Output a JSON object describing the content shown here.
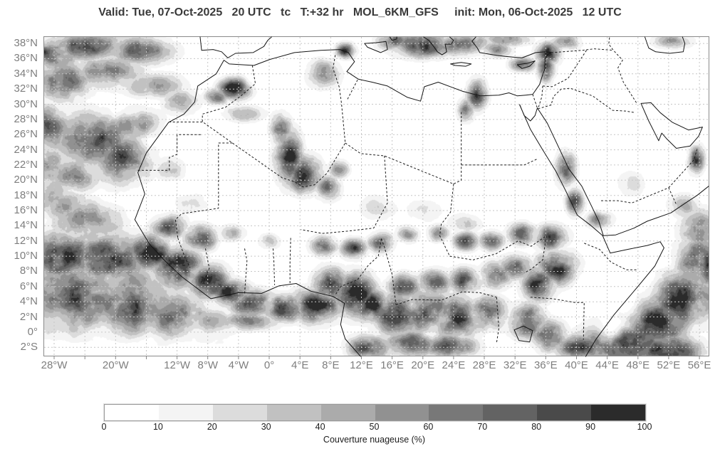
{
  "header": {
    "title": "Valid: Tue, 07-Oct-2025   20 UTC   tc   T:+32 hr   MOL_6KM_GFS     init: Mon, 06-Oct-2025   12 UTC"
  },
  "map": {
    "lat_ticks": [
      {
        "label": "38°N",
        "lat": 38
      },
      {
        "label": "36°N",
        "lat": 36
      },
      {
        "label": "34°N",
        "lat": 34
      },
      {
        "label": "32°N",
        "lat": 32
      },
      {
        "label": "30°N",
        "lat": 30
      },
      {
        "label": "28°N",
        "lat": 28
      },
      {
        "label": "26°N",
        "lat": 26
      },
      {
        "label": "24°N",
        "lat": 24
      },
      {
        "label": "22°N",
        "lat": 22
      },
      {
        "label": "20°N",
        "lat": 20
      },
      {
        "label": "18°N",
        "lat": 18
      },
      {
        "label": "16°N",
        "lat": 16
      },
      {
        "label": "14°N",
        "lat": 14
      },
      {
        "label": "12°N",
        "lat": 12
      },
      {
        "label": "10°N",
        "lat": 10
      },
      {
        "label": "8°N",
        "lat": 8
      },
      {
        "label": "6°N",
        "lat": 6
      },
      {
        "label": "4°N",
        "lat": 4
      },
      {
        "label": "2°N",
        "lat": 2
      },
      {
        "label": "0°",
        "lat": 0
      },
      {
        "label": "2°S",
        "lat": -2
      }
    ],
    "lon_ticks": [
      {
        "label": "28°W",
        "lon": -28
      },
      {
        "label": "20°W",
        "lon": -20
      },
      {
        "label": "12°W",
        "lon": -12
      },
      {
        "label": "8°W",
        "lon": -8
      },
      {
        "label": "4°W",
        "lon": -4
      },
      {
        "label": "0°",
        "lon": 0
      },
      {
        "label": "4°E",
        "lon": 4
      },
      {
        "label": "8°E",
        "lon": 8
      },
      {
        "label": "12°E",
        "lon": 12
      },
      {
        "label": "16°E",
        "lon": 16
      },
      {
        "label": "20°E",
        "lon": 20
      },
      {
        "label": "24°E",
        "lon": 24
      },
      {
        "label": "28°E",
        "lon": 28
      },
      {
        "label": "32°E",
        "lon": 32
      },
      {
        "label": "36°E",
        "lon": 36
      },
      {
        "label": "40°E",
        "lon": 40
      },
      {
        "label": "44°E",
        "lon": 44
      },
      {
        "label": "48°E",
        "lon": 48
      },
      {
        "label": "52°E",
        "lon": 52
      },
      {
        "label": "56°E",
        "lon": 56
      }
    ],
    "grid": {
      "lon_step_deg": 4,
      "lat_step_deg": 2
    }
  },
  "colorbar": {
    "label": "Couverture nuageuse (%)",
    "tick_labels": [
      "0",
      "10",
      "20",
      "30",
      "40",
      "50",
      "60",
      "70",
      "80",
      "90",
      "100"
    ],
    "colors": [
      "#ffffff",
      "#f4f4f4",
      "#dcdcdc",
      "#c1c1c1",
      "#ababab",
      "#919191",
      "#787878",
      "#636363",
      "#4a4a4a",
      "#2b2b2b"
    ]
  },
  "chart_data": {
    "type": "heatmap",
    "title": "Valid: Tue, 07-Oct-2025 20 UTC tc T:+32 hr MOL_6KM_GFS init: Mon, 06-Oct-2025 12 UTC",
    "variable": "Couverture nuageuse (%)",
    "units": "%",
    "model": "MOL_6KM_GFS",
    "valid_time": "Tue, 07-Oct-2025 20 UTC",
    "init_time": "Mon, 06-Oct-2025 12 UTC",
    "lead_hours": "+32",
    "extent": {
      "lon_min": -29.3,
      "lon_max": 57.2,
      "lat_min": -3.1,
      "lat_max": 38.85
    },
    "levels": [
      0,
      10,
      20,
      30,
      40,
      50,
      60,
      70,
      80,
      90,
      100
    ],
    "cloud_regions": [
      [
        -24,
        37.6,
        5,
        1.6,
        0.7
      ],
      [
        -17,
        37.2,
        4,
        1.8,
        0.6
      ],
      [
        -28.5,
        36.5,
        3,
        2.2,
        0.7
      ],
      [
        -27,
        33,
        3.5,
        2.5,
        0.68
      ],
      [
        -21,
        34.2,
        4,
        2,
        0.58
      ],
      [
        -15,
        32.5,
        3.5,
        1.5,
        0.5
      ],
      [
        -11.5,
        30.3,
        2.2,
        1.5,
        0.45
      ],
      [
        -23,
        25.5,
        4.5,
        3.5,
        0.7
      ],
      [
        -19,
        22.8,
        3.5,
        3,
        0.7
      ],
      [
        -25.5,
        20.8,
        3,
        2,
        0.6
      ],
      [
        -17.5,
        27.5,
        3,
        2,
        0.6
      ],
      [
        -28.8,
        27,
        2.5,
        3,
        0.65
      ],
      [
        -28.8,
        22,
        2,
        2.5,
        0.55
      ],
      [
        -20,
        29.8,
        4,
        1.2,
        -0.45
      ],
      [
        -13.8,
        25.5,
        2.5,
        2.5,
        -0.5
      ],
      [
        -27,
        16.8,
        3,
        2,
        0.5
      ],
      [
        -13,
        21.5,
        2,
        1.5,
        0.35
      ],
      [
        -4.6,
        32,
        1.8,
        1.3,
        0.95
      ],
      [
        -6.8,
        31,
        1.5,
        1,
        0.6
      ],
      [
        -3.5,
        28.8,
        2.5,
        1,
        0.4
      ],
      [
        7,
        34,
        2,
        1.8,
        0.45
      ],
      [
        10,
        37.1,
        1.2,
        0.9,
        0.85
      ],
      [
        1.5,
        26.5,
        1.2,
        2,
        0.75
      ],
      [
        2.5,
        23,
        1.6,
        3,
        0.95
      ],
      [
        4.5,
        20.8,
        2,
        2.2,
        0.85
      ],
      [
        7.5,
        19,
        1.5,
        1.5,
        0.6
      ],
      [
        9,
        21.5,
        1.2,
        1.2,
        0.5
      ],
      [
        14,
        16.5,
        2.5,
        1.5,
        0.28
      ],
      [
        20,
        16,
        2.5,
        1.5,
        0.22
      ],
      [
        25.5,
        14.5,
        2,
        1.2,
        0.3
      ],
      [
        -10,
        17,
        2,
        1.2,
        0.3
      ],
      [
        20,
        37.8,
        3.5,
        1.5,
        0.85
      ],
      [
        25,
        37.9,
        3,
        1.3,
        0.8
      ],
      [
        16,
        38.3,
        2,
        1,
        0.7
      ],
      [
        29.5,
        37.3,
        2,
        1,
        0.55
      ],
      [
        33,
        35.3,
        1.5,
        0.9,
        0.7
      ],
      [
        36.3,
        36.8,
        1.5,
        1.3,
        0.85
      ],
      [
        31,
        38.5,
        2.5,
        0.9,
        0.6
      ],
      [
        38.5,
        38.3,
        1.8,
        1,
        0.6
      ],
      [
        27,
        31.3,
        1.2,
        1.8,
        0.8
      ],
      [
        25.6,
        29.3,
        1,
        1.4,
        0.55
      ],
      [
        36,
        34.8,
        1,
        1.6,
        0.8
      ],
      [
        38.6,
        21.5,
        1.2,
        2,
        0.85
      ],
      [
        39.8,
        17.3,
        1,
        1.6,
        0.8
      ],
      [
        43,
        14.8,
        1.6,
        1,
        0.55
      ],
      [
        55.6,
        22.7,
        1,
        1.6,
        0.85
      ],
      [
        47,
        19.5,
        1.8,
        1.5,
        0.25
      ],
      [
        54,
        16.5,
        2,
        1.5,
        0.35
      ],
      [
        52.5,
        38.3,
        2.2,
        0.9,
        0.5
      ],
      [
        -13,
        13.8,
        2,
        1.4,
        0.8
      ],
      [
        -9,
        12.5,
        2,
        1.5,
        0.85
      ],
      [
        -5,
        13,
        1.5,
        1,
        0.55
      ],
      [
        0,
        12,
        1.2,
        0.9,
        0.45
      ],
      [
        7,
        11.3,
        1.5,
        1.2,
        0.7
      ],
      [
        11,
        11,
        1.5,
        1.2,
        0.75
      ],
      [
        14.5,
        11.8,
        1.5,
        1.2,
        0.7
      ],
      [
        18,
        13,
        1.3,
        1,
        0.6
      ],
      [
        22,
        13,
        1.2,
        1,
        0.6
      ],
      [
        25.5,
        12,
        1.5,
        1.1,
        0.7
      ],
      [
        29,
        12,
        1.5,
        1.1,
        0.65
      ],
      [
        33,
        13,
        1.8,
        1.3,
        0.7
      ],
      [
        -15.5,
        10.5,
        2.5,
        2,
        1
      ],
      [
        -12,
        8.5,
        2.8,
        2.5,
        1
      ],
      [
        -8,
        6.5,
        2.5,
        2,
        0.95
      ],
      [
        -5,
        5.2,
        2.2,
        1.6,
        0.9
      ],
      [
        -2,
        3.8,
        3,
        1.6,
        0.85
      ],
      [
        2,
        3.2,
        3,
        1.6,
        0.85
      ],
      [
        6,
        3.5,
        3,
        2,
        0.9
      ],
      [
        8,
        6.3,
        2,
        2,
        0.95
      ],
      [
        11,
        5,
        2.5,
        2.5,
        0.95
      ],
      [
        13.5,
        3.5,
        2,
        2,
        0.9
      ],
      [
        13,
        -2,
        2.5,
        1.5,
        0.8
      ],
      [
        16.5,
        2.5,
        3,
        2.5,
        0.85
      ],
      [
        20.5,
        2.8,
        3,
        2.5,
        0.8
      ],
      [
        24.5,
        2,
        3,
        2.5,
        0.85
      ],
      [
        28,
        2.5,
        2.5,
        2,
        0.8
      ],
      [
        18.5,
        -1.5,
        3,
        1.5,
        0.75
      ],
      [
        23.5,
        -1.8,
        3,
        1.5,
        0.75
      ],
      [
        17.5,
        6,
        2,
        1.5,
        0.75
      ],
      [
        21.5,
        6.5,
        2,
        1.5,
        0.7
      ],
      [
        25.5,
        6.8,
        2,
        1.5,
        0.75
      ],
      [
        29.5,
        7.5,
        2,
        1.5,
        0.7
      ],
      [
        32,
        8.5,
        2,
        1.5,
        0.7
      ],
      [
        36.5,
        12.5,
        2,
        1.5,
        0.75
      ],
      [
        37.5,
        8.5,
        2.5,
        2,
        0.85
      ],
      [
        35,
        6.5,
        2,
        2,
        0.85
      ],
      [
        33.5,
        1.5,
        2,
        2,
        0.8
      ],
      [
        36.5,
        -0.5,
        2,
        1.8,
        0.75
      ],
      [
        40.5,
        -2,
        3,
        1.5,
        0.85
      ],
      [
        46,
        -1.5,
        5,
        2.5,
        0.9
      ],
      [
        50,
        1.5,
        4,
        3,
        0.85
      ],
      [
        53.5,
        4.5,
        4,
        3.5,
        0.85
      ],
      [
        56,
        9,
        3,
        3,
        0.8
      ],
      [
        52,
        -2.5,
        4,
        2,
        0.85
      ],
      [
        56,
        13.5,
        2.5,
        2.5,
        0.5
      ],
      [
        44.5,
        1,
        1.8,
        1.8,
        -0.9
      ],
      [
        46.5,
        4,
        1.8,
        1.8,
        -0.9
      ],
      [
        48.5,
        7,
        2,
        2,
        -0.9
      ],
      [
        50.8,
        9.8,
        2.2,
        1.8,
        -0.8
      ],
      [
        43,
        6,
        2.5,
        3,
        -0.6
      ],
      [
        -25,
        5,
        6,
        4.5,
        0.72
      ],
      [
        -18,
        4,
        5,
        4,
        0.75
      ],
      [
        -12,
        2,
        4,
        3,
        0.7
      ],
      [
        -27,
        10,
        4,
        3,
        0.8
      ],
      [
        -21,
        9.5,
        4.5,
        3,
        0.85
      ],
      [
        -24,
        14.5,
        4,
        2.5,
        0.6
      ],
      [
        -28.5,
        18,
        2.5,
        2.5,
        0.5
      ],
      [
        -8,
        0.8,
        3,
        2,
        0.6
      ],
      [
        -2.5,
        1.5,
        3.5,
        1.3,
        0.55
      ],
      [
        -22,
        -2.8,
        8,
        1.6,
        -0.85
      ],
      [
        -10,
        -2.5,
        6,
        1.6,
        -0.8
      ],
      [
        -8,
        -0.3,
        4,
        1.6,
        -0.7
      ],
      [
        -1,
        -1.5,
        5,
        1.6,
        -0.75
      ],
      [
        -15,
        -1.2,
        3,
        1.2,
        -0.5
      ]
    ]
  }
}
